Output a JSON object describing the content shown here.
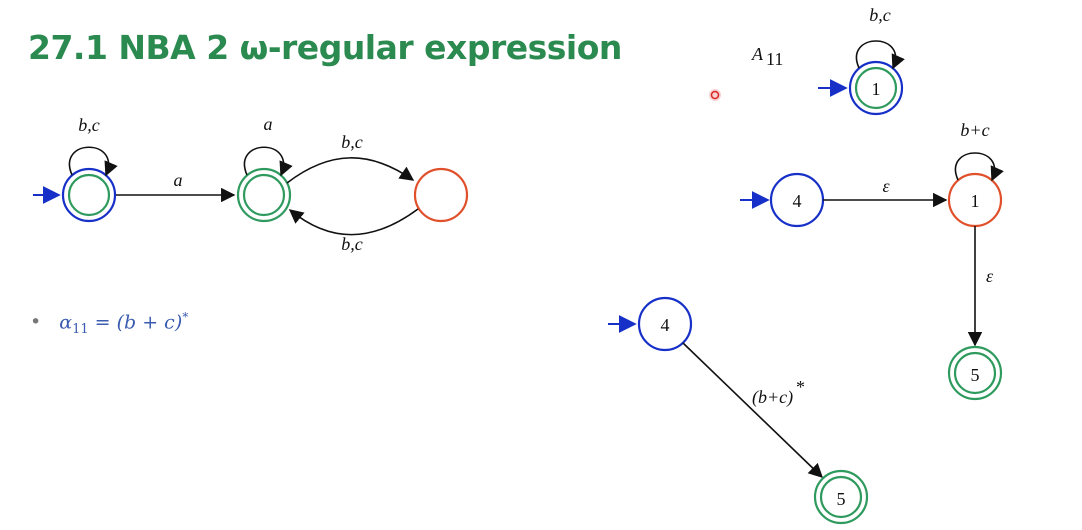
{
  "title": "27.1 NBA 2 ω-regular expression",
  "formula": {
    "bullet": "•",
    "lhs": "α",
    "lhs_sub": "11",
    "eq": " = ",
    "rhs": "(b + c)",
    "rhs_sup": "*"
  },
  "colors": {
    "title": "#2a8a4f",
    "blue": "#1730c8",
    "green": "#2e9a5e",
    "red": "#e0502a",
    "formula": "#3a5bb0"
  },
  "diagram_left": {
    "state_a_selfloop": "b,c",
    "edge_a_label": "a",
    "state_b_selfloop": "a",
    "edge_top_label": "b,c",
    "edge_bottom_label": "b,c"
  },
  "diagram_right": {
    "automaton_name": "A",
    "automaton_sub": "11",
    "a11_selfloop": "b,c",
    "a11_state": "1",
    "state_4": "4",
    "eps1": "ε",
    "state_1": "1",
    "state_1_selfloop": "b+c",
    "eps2": "ε",
    "state_5": "5"
  },
  "diagram_bottom": {
    "state_4": "4",
    "edge_label": "(b+c)",
    "edge_sup": "*",
    "state_5": "5"
  }
}
